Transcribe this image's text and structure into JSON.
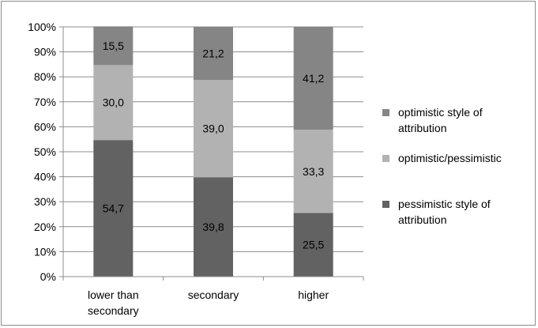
{
  "chart_data": {
    "type": "bar",
    "stacked": true,
    "percent": true,
    "categories": [
      [
        "lower than",
        "secondary"
      ],
      [
        "secondary"
      ],
      [
        "higher"
      ]
    ],
    "series": [
      {
        "name": [
          "pessimistic style of",
          "attribution"
        ],
        "values": [
          54.7,
          39.8,
          25.5
        ],
        "labels": [
          "54,7",
          "39,8",
          "25,5"
        ],
        "color": "#626262"
      },
      {
        "name": [
          "optimistic/pessimistic"
        ],
        "values": [
          30.0,
          39.0,
          33.3
        ],
        "labels": [
          "30,0",
          "39,0",
          "33,3"
        ],
        "color": "#b2b2b2"
      },
      {
        "name": [
          "optimistic style of",
          "attribution"
        ],
        "values": [
          15.5,
          21.2,
          41.2
        ],
        "labels": [
          "15,5",
          "21,2",
          "41,2"
        ],
        "color": "#858585"
      }
    ],
    "yticks": [
      "0%",
      "10%",
      "20%",
      "30%",
      "40%",
      "50%",
      "60%",
      "70%",
      "80%",
      "90%",
      "100%"
    ],
    "ylim": [
      0,
      100
    ],
    "grid": true,
    "legend_position": "right",
    "legend_order": [
      2,
      1,
      0
    ]
  }
}
